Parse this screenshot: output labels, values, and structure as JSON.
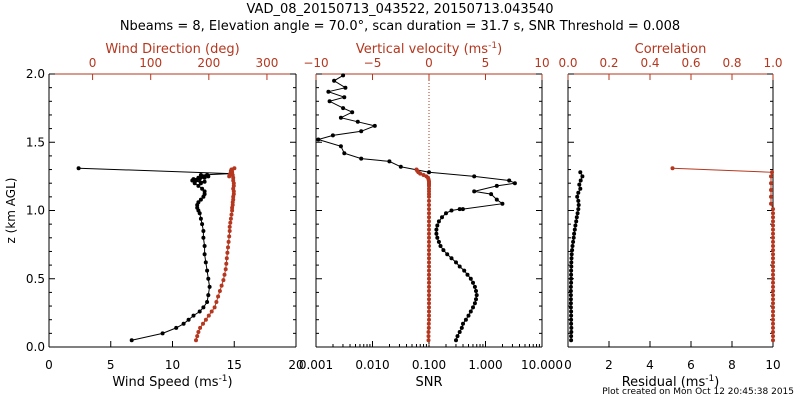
{
  "title_line1": "VAD_08_20150713_043522, 20150713.043540",
  "title_line2": "Nbeams = 8, Elevation angle = 70.0°, scan duration = 31.7 s, SNR Threshold = 0.008",
  "footer": "Plot created on Mon Oct 12 20:45:38 2015",
  "colors": {
    "primary": "#000000",
    "secondary": "#b5371f"
  },
  "chart_data": [
    {
      "type": "line",
      "ylabel": "z (km AGL)",
      "ylim": [
        0,
        2
      ],
      "yticks": [
        0.0,
        0.5,
        1.0,
        1.5,
        2.0
      ],
      "ytick_labels": [
        "0.0",
        "0.5",
        "1.0",
        "1.5",
        "2.0"
      ],
      "bottom_axis": {
        "label": "Wind Speed (ms",
        "label_sup": "-1",
        "label_end": ")",
        "xlim": [
          0,
          20
        ],
        "ticks": [
          0,
          5,
          10,
          15,
          20
        ],
        "tick_labels": [
          "0",
          "5",
          "10",
          "15",
          "20"
        ]
      },
      "top_axis": {
        "label": "Wind Direction (deg)",
        "xlim": [
          -75,
          350
        ],
        "ticks": [
          0,
          100,
          200,
          300
        ],
        "tick_labels": [
          "0",
          "100",
          "200",
          "300"
        ]
      },
      "series": [
        {
          "axis": "bottom",
          "color": "primary",
          "markers": true,
          "x": [
            6.7,
            9.2,
            10.3,
            10.9,
            11.3,
            11.7,
            12.2,
            12.5,
            12.8,
            12.9,
            13.0,
            12.9,
            12.8,
            12.7,
            12.6,
            12.6,
            12.5,
            12.5,
            12.4,
            12.3,
            12.2,
            12.1,
            12.0,
            12.0,
            12.1,
            12.3,
            12.5,
            12.6,
            12.6,
            12.4,
            12.1,
            11.8,
            11.8,
            12.2,
            12.6,
            12.9,
            12.8,
            12.4,
            12.1,
            11.7,
            11.6,
            12.6,
            12.3,
            11.9,
            12.3,
            14.7,
            2.4
          ],
          "y": [
            0.05,
            0.1,
            0.14,
            0.17,
            0.2,
            0.23,
            0.26,
            0.29,
            0.33,
            0.38,
            0.44,
            0.5,
            0.56,
            0.62,
            0.68,
            0.74,
            0.8,
            0.85,
            0.9,
            0.94,
            0.98,
            1.0,
            1.02,
            1.04,
            1.06,
            1.08,
            1.1,
            1.12,
            1.14,
            1.16,
            1.18,
            1.2,
            1.22,
            1.23,
            1.24,
            1.25,
            1.26,
            1.25,
            1.24,
            1.23,
            1.22,
            1.21,
            1.2,
            1.22,
            1.26,
            1.27,
            1.31
          ]
        },
        {
          "axis": "top",
          "color": "secondary",
          "markers": true,
          "x": [
            178,
            180,
            182,
            185,
            190,
            195,
            200,
            205,
            210,
            213,
            216,
            219,
            222,
            225,
            227,
            229,
            230,
            231,
            232,
            233,
            234,
            235,
            236,
            236,
            237,
            238,
            239,
            240,
            240,
            241,
            241,
            242,
            242,
            243,
            243,
            242,
            243,
            243,
            242,
            242,
            241,
            240,
            240,
            239,
            238,
            238,
            238,
            236,
            235,
            236,
            240,
            244
          ],
          "y": [
            0.05,
            0.08,
            0.11,
            0.14,
            0.17,
            0.2,
            0.23,
            0.26,
            0.29,
            0.33,
            0.37,
            0.41,
            0.45,
            0.49,
            0.53,
            0.57,
            0.61,
            0.65,
            0.69,
            0.73,
            0.77,
            0.81,
            0.85,
            0.88,
            0.91,
            0.94,
            0.97,
            1.0,
            1.02,
            1.04,
            1.06,
            1.08,
            1.1,
            1.12,
            1.14,
            1.16,
            1.18,
            1.2,
            1.22,
            1.24,
            1.26,
            1.28,
            1.3,
            1.3,
            1.29,
            1.28,
            1.27,
            1.26,
            1.25,
            1.26,
            1.28,
            1.31
          ]
        }
      ]
    },
    {
      "type": "line",
      "ylim": [
        0,
        2
      ],
      "bottom_axis": {
        "label": "SNR",
        "scale": "log",
        "xlim": [
          0.001,
          10
        ],
        "ticks": [
          0.001,
          0.01,
          0.1,
          1,
          10
        ],
        "tick_labels": [
          "0.001",
          "0.010",
          "0.100",
          "1.000",
          "10.000"
        ]
      },
      "top_axis": {
        "label": "Vertical velocity (ms",
        "label_sup": "-1",
        "label_end": ")",
        "xlim": [
          -10,
          10
        ],
        "ticks": [
          -10,
          -5,
          0,
          5,
          10
        ],
        "tick_labels": [
          "−10",
          "−5",
          "0",
          "5",
          "10"
        ],
        "zero_line": 0
      },
      "series": [
        {
          "axis": "bottom",
          "color": "primary",
          "markers": true,
          "x": [
            0.3,
            0.32,
            0.35,
            0.38,
            0.4,
            0.45,
            0.5,
            0.55,
            0.6,
            0.65,
            0.68,
            0.7,
            0.68,
            0.65,
            0.6,
            0.55,
            0.48,
            0.42,
            0.35,
            0.3,
            0.25,
            0.21,
            0.18,
            0.16,
            0.15,
            0.14,
            0.135,
            0.135,
            0.14,
            0.15,
            0.17,
            0.2,
            0.25,
            0.35
          ],
          "y": [
            0.05,
            0.08,
            0.11,
            0.14,
            0.17,
            0.2,
            0.23,
            0.26,
            0.29,
            0.32,
            0.35,
            0.38,
            0.41,
            0.44,
            0.47,
            0.5,
            0.53,
            0.56,
            0.59,
            0.62,
            0.65,
            0.68,
            0.71,
            0.74,
            0.77,
            0.8,
            0.83,
            0.86,
            0.89,
            0.92,
            0.95,
            0.98,
            1.0,
            1.01
          ]
        },
        {
          "axis": "top",
          "color": "primary",
          "markers": true,
          "x": [
            3.0,
            6.5,
            6.0,
            5.5,
            4.0,
            6.0,
            7.6,
            7.1,
            4.0,
            0.0,
            -2.5,
            -3.5,
            -6.0,
            -7.5,
            -7.8,
            -9.8,
            -8.5,
            -6.0,
            -4.8,
            -6.3,
            -7.8,
            -6.8,
            -7.6,
            -8.8,
            -7.5,
            -8.9,
            -7.4,
            -8.4,
            -7.6
          ],
          "y": [
            1.01,
            1.05,
            1.08,
            1.12,
            1.14,
            1.18,
            1.2,
            1.22,
            1.25,
            1.28,
            1.32,
            1.36,
            1.38,
            1.42,
            1.47,
            1.52,
            1.55,
            1.58,
            1.62,
            1.65,
            1.68,
            1.72,
            1.75,
            1.8,
            1.83,
            1.87,
            1.9,
            1.95,
            1.99
          ]
        },
        {
          "axis": "bottom",
          "color": "secondary",
          "markers": true,
          "x": [
            0.098,
            0.098,
            0.098,
            0.099,
            0.099,
            0.1,
            0.1,
            0.1,
            0.1,
            0.1,
            0.1,
            0.1,
            0.1,
            0.1,
            0.1,
            0.1,
            0.1,
            0.1,
            0.1,
            0.1,
            0.1,
            0.1,
            0.1,
            0.1,
            0.1,
            0.1,
            0.1,
            0.1,
            0.1,
            0.1,
            0.1,
            0.1,
            0.1,
            0.1,
            0.1,
            0.1,
            0.1,
            0.1,
            0.1,
            0.1,
            0.1,
            0.1,
            0.1,
            0.099,
            0.098,
            0.096,
            0.09,
            0.08,
            0.07,
            0.065,
            0.062,
            0.06
          ],
          "y": [
            0.05,
            0.08,
            0.11,
            0.14,
            0.17,
            0.2,
            0.23,
            0.26,
            0.29,
            0.32,
            0.35,
            0.38,
            0.41,
            0.44,
            0.47,
            0.5,
            0.53,
            0.56,
            0.59,
            0.62,
            0.65,
            0.68,
            0.71,
            0.74,
            0.77,
            0.8,
            0.83,
            0.86,
            0.89,
            0.92,
            0.95,
            0.98,
            1.01,
            1.04,
            1.07,
            1.1,
            1.12,
            1.14,
            1.16,
            1.18,
            1.19,
            1.2,
            1.21,
            1.22,
            1.23,
            1.24,
            1.25,
            1.26,
            1.27,
            1.28,
            1.29,
            1.3
          ]
        }
      ]
    },
    {
      "type": "line",
      "ylim": [
        0,
        2
      ],
      "bottom_axis": {
        "label": "Residual (ms",
        "label_sup": "-1",
        "label_end": ")",
        "xlim": [
          0,
          10
        ],
        "ticks": [
          0,
          2,
          4,
          6,
          8,
          10
        ],
        "tick_labels": [
          "0",
          "2",
          "4",
          "6",
          "8",
          "10"
        ]
      },
      "top_axis": {
        "label": "Correlation",
        "xlim": [
          0,
          1
        ],
        "ticks": [
          0,
          0.2,
          0.4,
          0.6,
          0.8,
          1.0
        ],
        "tick_labels": [
          "0.0",
          "0.2",
          "0.4",
          "0.6",
          "0.8",
          "1.0"
        ]
      },
      "series": [
        {
          "axis": "top",
          "color": "secondary",
          "markers": true,
          "x": [
            1.0,
            1.0,
            1.0,
            1.0,
            1.0,
            1.0,
            1.0,
            1.0,
            1.0,
            1.0,
            1.0,
            1.0,
            1.0,
            1.0,
            1.0,
            1.0,
            1.0,
            1.0,
            1.0,
            1.0,
            1.0,
            1.0,
            1.0,
            1.0,
            1.0,
            1.0,
            1.0,
            1.0,
            1.0,
            1.0,
            1.0,
            1.0,
            1.0,
            0.99,
            0.99,
            0.99,
            0.99,
            0.99,
            0.995,
            0.51
          ],
          "y": [
            0.05,
            0.08,
            0.11,
            0.14,
            0.17,
            0.2,
            0.23,
            0.26,
            0.29,
            0.32,
            0.35,
            0.38,
            0.41,
            0.44,
            0.47,
            0.5,
            0.53,
            0.56,
            0.59,
            0.62,
            0.65,
            0.68,
            0.71,
            0.74,
            0.77,
            0.8,
            0.83,
            0.86,
            0.89,
            0.92,
            0.95,
            0.98,
            1.01,
            1.05,
            1.1,
            1.15,
            1.2,
            1.25,
            1.28,
            1.31
          ]
        },
        {
          "axis": "bottom",
          "color": "primary",
          "markers": true,
          "x": [
            0.15,
            0.15,
            0.16,
            0.16,
            0.15,
            0.15,
            0.15,
            0.15,
            0.14,
            0.14,
            0.14,
            0.14,
            0.14,
            0.14,
            0.15,
            0.15,
            0.15,
            0.15,
            0.16,
            0.16,
            0.17,
            0.18,
            0.2,
            0.22,
            0.25,
            0.28,
            0.3,
            0.33,
            0.36,
            0.4,
            0.43,
            0.47,
            0.5,
            0.52,
            0.5,
            0.45,
            0.5,
            0.6,
            0.55,
            0.62,
            0.7,
            0.6
          ],
          "y": [
            0.05,
            0.08,
            0.11,
            0.14,
            0.17,
            0.2,
            0.23,
            0.26,
            0.29,
            0.32,
            0.35,
            0.38,
            0.41,
            0.44,
            0.47,
            0.5,
            0.53,
            0.56,
            0.59,
            0.62,
            0.65,
            0.68,
            0.71,
            0.74,
            0.77,
            0.8,
            0.83,
            0.86,
            0.89,
            0.92,
            0.95,
            0.98,
            1.01,
            1.04,
            1.07,
            1.1,
            1.13,
            1.16,
            1.19,
            1.22,
            1.25,
            1.28
          ]
        }
      ]
    }
  ]
}
